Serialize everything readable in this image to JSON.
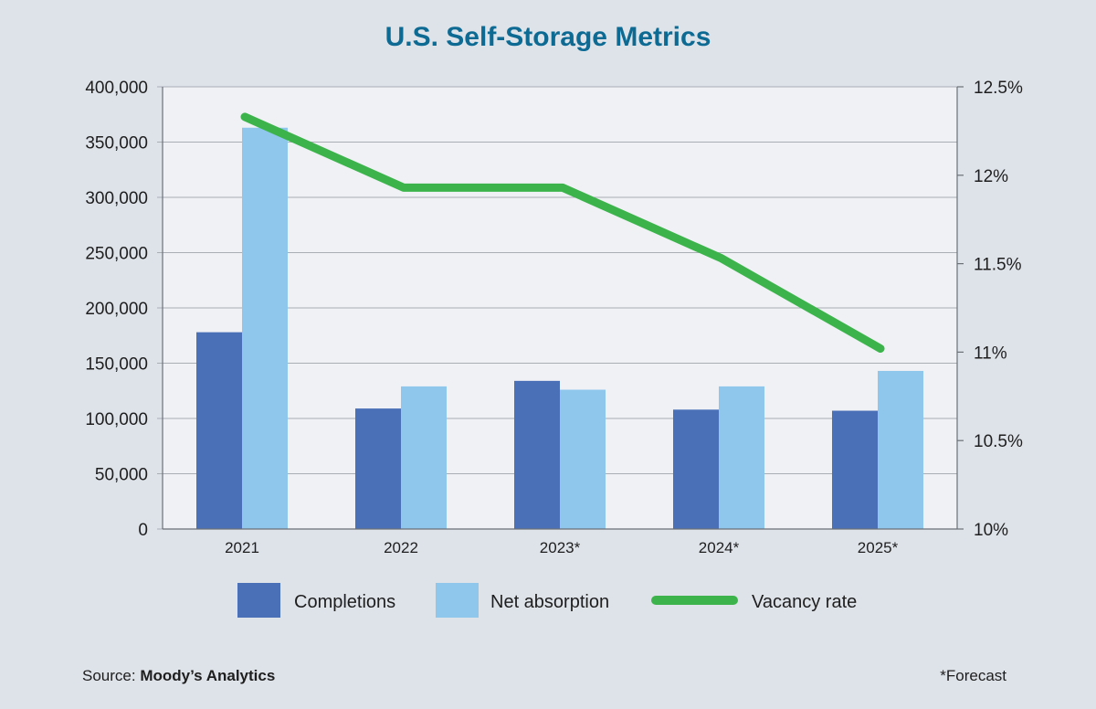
{
  "chart_data": {
    "type": "bar",
    "title": "U.S. Self-Storage Metrics",
    "categories": [
      "2021",
      "2022",
      "2023*",
      "2024*",
      "2025*"
    ],
    "series": [
      {
        "name": "Completions",
        "type": "bar",
        "axis": "left",
        "color": "#4a70b8",
        "values": [
          178000,
          109000,
          134000,
          108000,
          107000
        ]
      },
      {
        "name": "Net absorption",
        "type": "bar",
        "axis": "left",
        "color": "#8fc6ec",
        "values": [
          363000,
          129000,
          126000,
          129000,
          143000
        ]
      },
      {
        "name": "Vacancy rate",
        "type": "line",
        "axis": "right",
        "color": "#3cb44b",
        "values": [
          12.33,
          11.93,
          11.93,
          11.53,
          11.02
        ]
      }
    ],
    "left_axis": {
      "ylim": [
        0,
        400000
      ],
      "ticks": [
        0,
        50000,
        100000,
        150000,
        200000,
        250000,
        300000,
        350000,
        400000
      ],
      "tick_labels": [
        "0",
        "50,000",
        "100,000",
        "150,000",
        "200,000",
        "250,000",
        "300,000",
        "350,000",
        "400,000"
      ]
    },
    "right_axis": {
      "ylim": [
        10,
        12.5
      ],
      "ticks": [
        10,
        10.5,
        11,
        11.5,
        12,
        12.5
      ],
      "tick_labels": [
        "10%",
        "10.5%",
        "11%",
        "11.5%",
        "12%",
        "12.5%"
      ]
    },
    "grid": true,
    "legend_position": "bottom"
  },
  "footer": {
    "source_prefix": "Source: ",
    "source_name": "Moody’s Analytics",
    "forecast_note": "*Forecast"
  },
  "colors": {
    "background": "#dee3ea",
    "plot_background": "#eff1f5",
    "title": "#0d6a93",
    "gridline": "#a9aeb5"
  }
}
